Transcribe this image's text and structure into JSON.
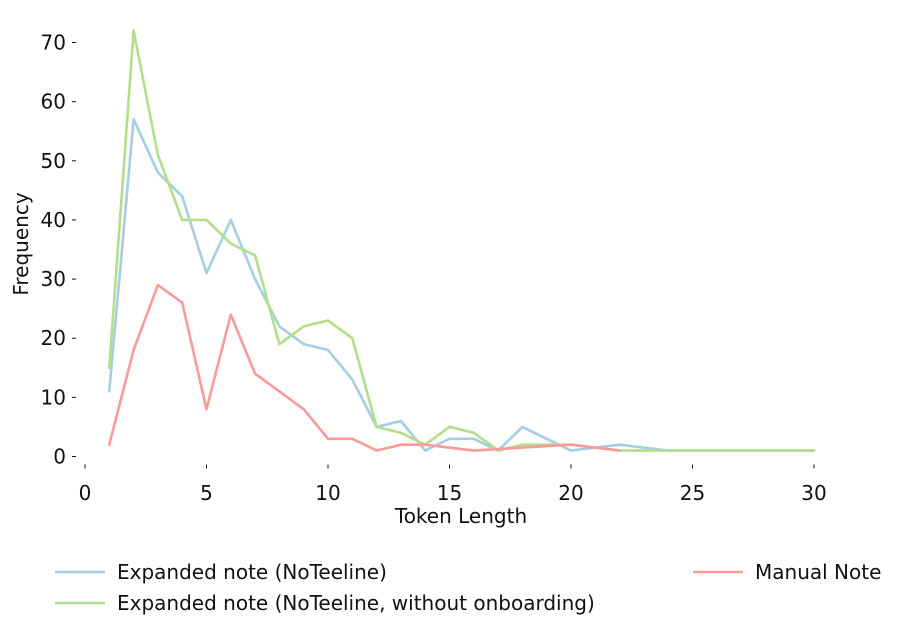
{
  "chart_data": {
    "type": "line",
    "title": "",
    "xlabel": "Token Length",
    "ylabel": "Frequency",
    "xlim": [
      0,
      30
    ],
    "ylim": [
      0,
      72
    ],
    "xticks": [
      0,
      5,
      10,
      15,
      20,
      25,
      30
    ],
    "yticks": [
      0,
      10,
      20,
      30,
      40,
      50,
      60,
      70
    ],
    "grid": false,
    "legend_position": "bottom",
    "series": [
      {
        "name": "Expanded note (NoTeeline)",
        "color": "#a6cee3",
        "x": [
          1,
          2,
          3,
          4,
          5,
          6,
          7,
          8,
          9,
          10,
          11,
          12,
          13,
          14,
          15,
          16,
          17,
          18,
          19,
          20,
          22,
          24,
          26,
          30
        ],
        "y": [
          11,
          57,
          48,
          44,
          31,
          40,
          30,
          22,
          19,
          18,
          13,
          5,
          6,
          1,
          3,
          3,
          1,
          5,
          3,
          1,
          2,
          1,
          1,
          1
        ]
      },
      {
        "name": "Expanded note (NoTeeline, without onboarding)",
        "color": "#b2df8a",
        "x": [
          1,
          2,
          3,
          4,
          5,
          6,
          7,
          8,
          9,
          10,
          11,
          12,
          13,
          14,
          15,
          16,
          17,
          18,
          20,
          22,
          24,
          30
        ],
        "y": [
          15,
          72,
          51,
          40,
          40,
          36,
          34,
          19,
          22,
          23,
          20,
          5,
          4,
          2,
          5,
          4,
          1,
          2,
          2,
          1,
          1,
          1
        ]
      },
      {
        "name": "Manual Note",
        "color": "#fb9a99",
        "x": [
          1,
          2,
          3,
          4,
          5,
          6,
          7,
          8,
          9,
          10,
          11,
          12,
          13,
          14,
          16,
          18,
          20,
          21,
          22
        ],
        "y": [
          2,
          18,
          29,
          26,
          8,
          24,
          14,
          11,
          8,
          3,
          3,
          1,
          2,
          2,
          1,
          1.5,
          2,
          1.5,
          1
        ]
      }
    ]
  }
}
